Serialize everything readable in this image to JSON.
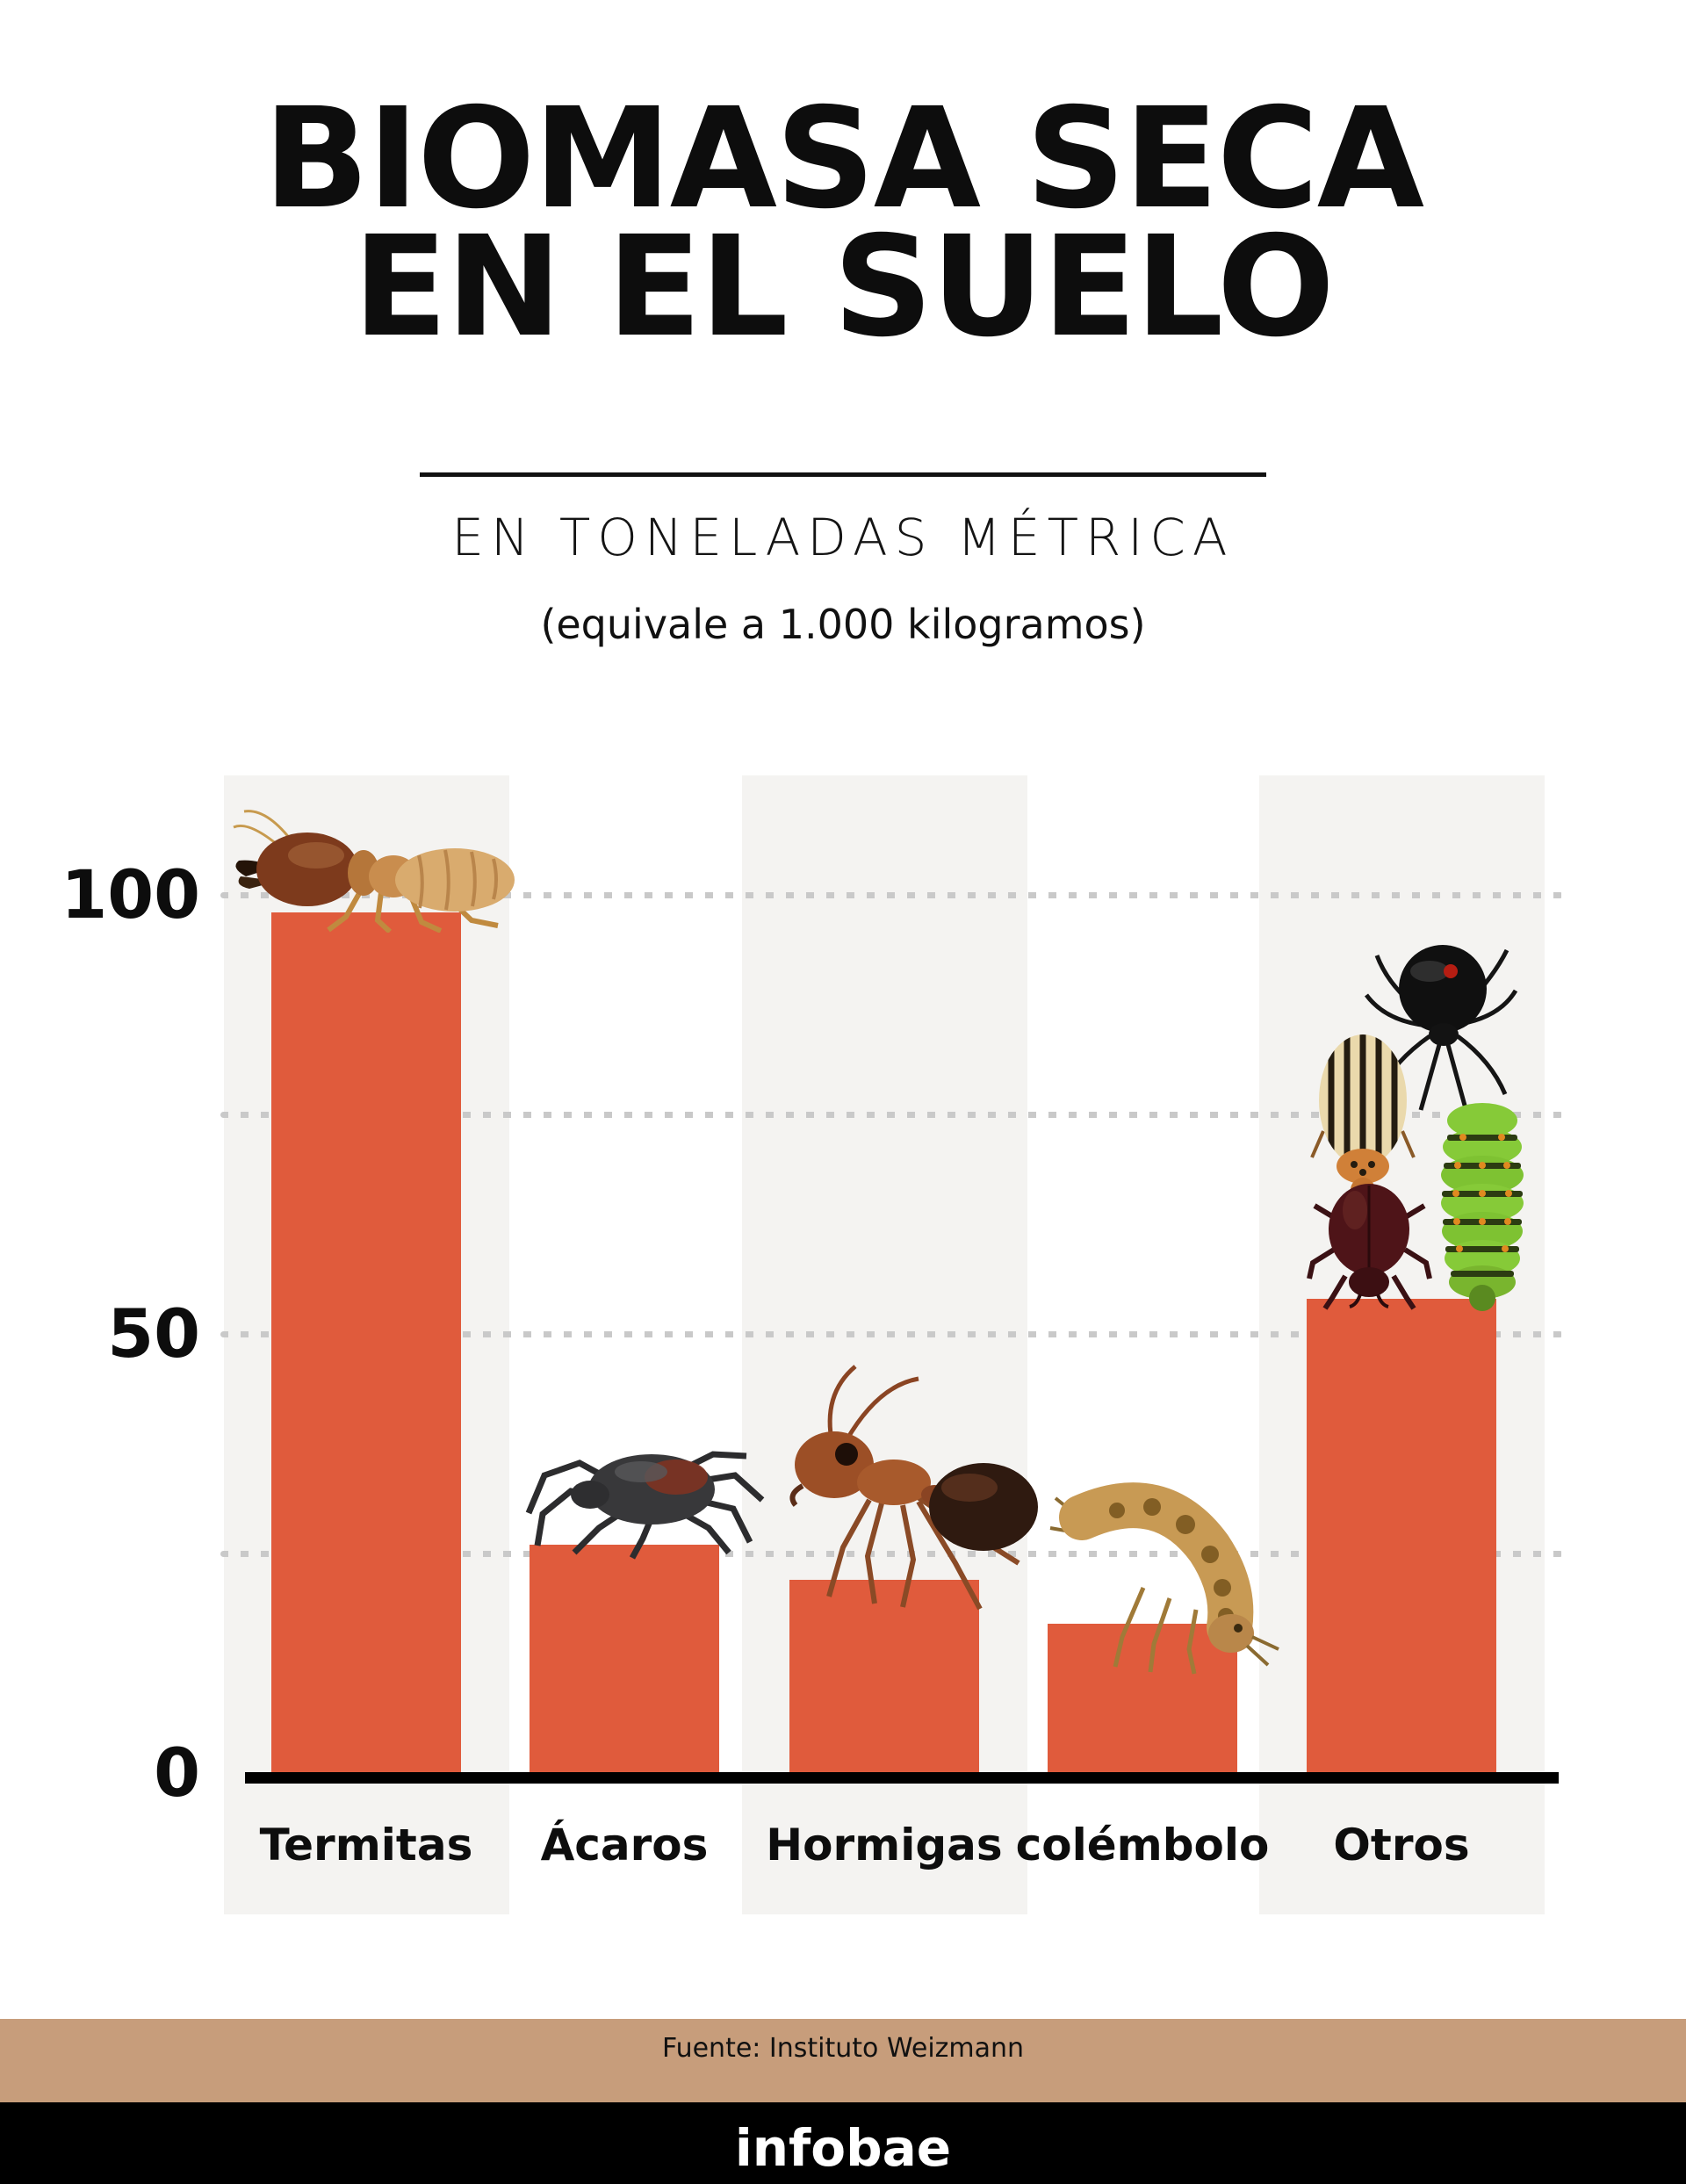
{
  "header": {
    "title_line1": "BIOMASA SECA",
    "title_line2": "EN EL SUELO",
    "subtitle": "EN TONELADAS MÉTRICA",
    "note": "(equivale a 1.000 kilogramos)"
  },
  "chart_data": {
    "type": "bar",
    "title": "BIOMASA SECA EN EL SUELO",
    "subtitle": "EN TONELADAS MÉTRICA (equivale a 1.000 kilogramos)",
    "categories": [
      "Termitas",
      "Ácaros",
      "Hormigas",
      "colémbolo",
      "Otros"
    ],
    "values": [
      98,
      26,
      22,
      17,
      54
    ],
    "unit": "toneladas métricas",
    "ylim": [
      0,
      105
    ],
    "yticks": [
      100,
      50,
      0
    ],
    "gridlines": [
      25,
      50,
      75,
      100
    ],
    "grid_style": "dotted",
    "grid_on": true,
    "legend": "none",
    "bar_color": "#E05B3C",
    "column_band_color": "#F4F3F1",
    "grid_dot_color": "#C9C9C9",
    "axis_color": "#000000",
    "bar_images": [
      "termite-image",
      "mite-image",
      "ant-image",
      "springtail-image",
      "spider-image+striped-beetle-image+caterpillar-image+dark-beetle-image"
    ]
  },
  "footer": {
    "source": "Fuente: Instituto Weizmann",
    "brand": "infobae",
    "band_color": "#C79D7B",
    "brand_band_color": "#000000"
  }
}
